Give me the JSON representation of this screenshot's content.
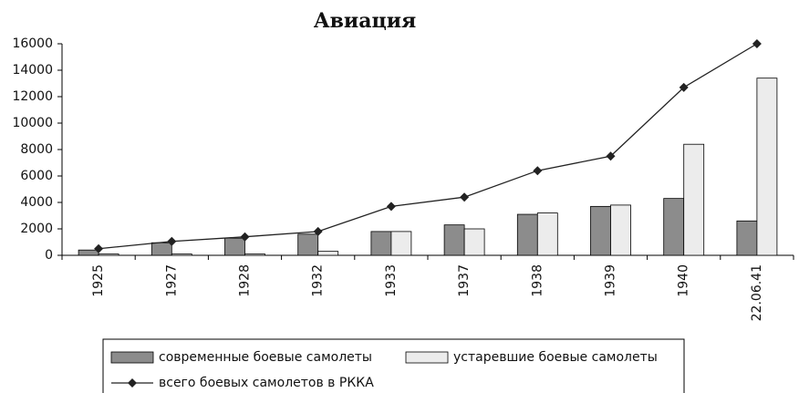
{
  "chart_data": {
    "type": "bar",
    "title": "Авиация",
    "categories": [
      "1925",
      "1927",
      "1928",
      "1932",
      "1933",
      "1937",
      "1938",
      "1939",
      "1940",
      "22.06.41"
    ],
    "series": [
      {
        "name": "современные боевые самолеты",
        "type": "bar",
        "color": "#8c8c8c",
        "values": [
          400,
          950,
          1300,
          1600,
          1800,
          2300,
          3100,
          3700,
          4300,
          2600
        ]
      },
      {
        "name": "устаревшие боевые самолеты",
        "type": "bar",
        "color": "#ececec",
        "values": [
          100,
          100,
          100,
          300,
          1800,
          2000,
          3200,
          3800,
          8400,
          13400
        ]
      },
      {
        "name": "всего боевых самолетов в РККА",
        "type": "line",
        "color": "#222222",
        "values": [
          500,
          1050,
          1400,
          1800,
          3700,
          4400,
          6400,
          7500,
          12700,
          16000
        ]
      }
    ],
    "ylim": [
      0,
      16000
    ],
    "yticks": [
      0,
      2000,
      4000,
      6000,
      8000,
      10000,
      12000,
      14000,
      16000
    ],
    "grid": false
  }
}
